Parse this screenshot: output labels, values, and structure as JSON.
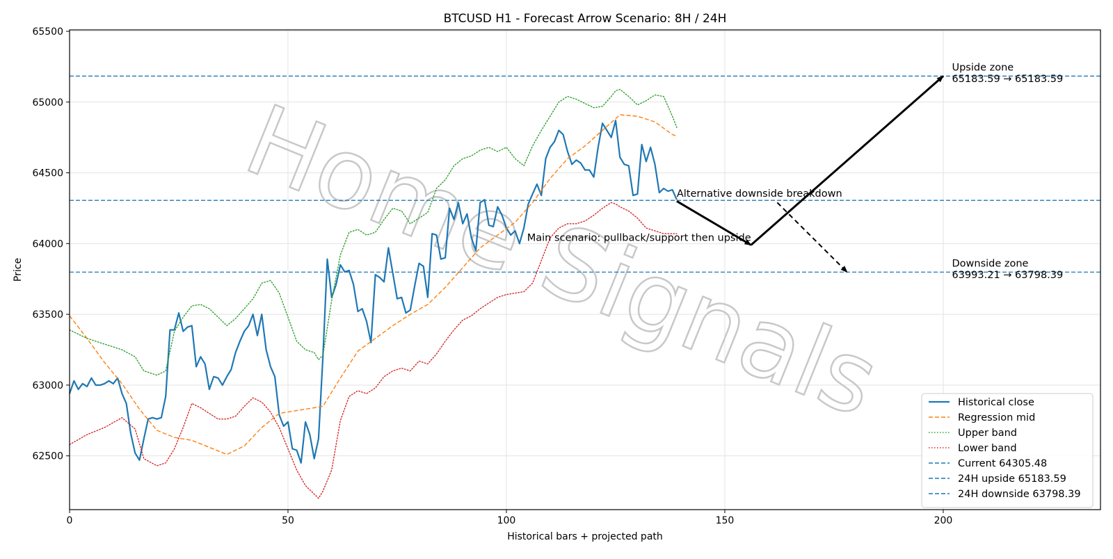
{
  "chart_data": {
    "type": "line",
    "title": "BTCUSD H1 - Forecast Arrow Scenario: 8H / 24H",
    "xlabel": "Historical bars + projected path",
    "ylabel": "Price",
    "xlim": [
      0,
      236
    ],
    "ylim": [
      62120,
      65510
    ],
    "x_ticks": [
      0,
      50,
      100,
      150,
      200
    ],
    "y_ticks": [
      62500,
      63000,
      63500,
      64000,
      64500,
      65000,
      65500
    ],
    "grid": true,
    "legend_position": "bottom-right",
    "watermark": "Home Signals",
    "colors": {
      "historical": "#1f77b4",
      "regression": "#ff7f0e",
      "upper": "#2ca02c",
      "lower": "#d62728",
      "hline": "#1f77b4",
      "arrow": "#000000"
    },
    "series": [
      {
        "name": "Historical close",
        "style": "solid",
        "x": [
          0,
          1,
          2,
          3,
          4,
          5,
          6,
          7,
          8,
          9,
          10,
          11,
          12,
          13,
          14,
          15,
          16,
          17,
          18,
          19,
          20,
          21,
          22,
          23,
          24,
          25,
          26,
          27,
          28,
          29,
          30,
          31,
          32,
          33,
          34,
          35,
          36,
          37,
          38,
          39,
          40,
          41,
          42,
          43,
          44,
          45,
          46,
          47,
          48,
          49,
          50,
          51,
          52,
          53,
          54,
          55,
          56,
          57,
          58,
          59,
          60,
          61,
          62,
          63,
          64,
          65,
          66,
          67,
          68,
          69,
          70,
          71,
          72,
          73,
          74,
          75,
          76,
          77,
          78,
          79,
          80,
          81,
          82,
          83,
          84,
          85,
          86,
          87,
          88,
          89,
          90,
          91,
          92,
          93,
          94,
          95,
          96,
          97,
          98,
          99,
          100,
          101,
          102,
          103,
          104,
          105,
          106,
          107,
          108,
          109,
          110,
          111,
          112,
          113,
          114,
          115,
          116,
          117,
          118,
          119,
          120,
          121,
          122,
          123,
          124,
          125,
          126,
          127,
          128,
          129,
          130,
          131,
          132,
          133,
          134,
          135,
          136,
          137,
          138,
          139
        ],
        "y": [
          62940,
          63030,
          62970,
          63010,
          62990,
          63050,
          63000,
          63000,
          63010,
          63030,
          63010,
          63050,
          62940,
          62870,
          62660,
          62520,
          62470,
          62620,
          62760,
          62770,
          62760,
          62770,
          62920,
          63390,
          63390,
          63510,
          63380,
          63410,
          63420,
          63130,
          63200,
          63150,
          62970,
          63060,
          63050,
          63000,
          63060,
          63110,
          63230,
          63310,
          63380,
          63420,
          63500,
          63350,
          63500,
          63250,
          63130,
          63060,
          62790,
          62710,
          62740,
          62550,
          62540,
          62450,
          62740,
          62650,
          62480,
          62620,
          63200,
          63890,
          63620,
          63710,
          63850,
          63800,
          63810,
          63710,
          63520,
          63540,
          63450,
          63300,
          63780,
          63760,
          63730,
          63970,
          63790,
          63610,
          63620,
          63510,
          63530,
          63700,
          63860,
          63840,
          63620,
          64070,
          64060,
          63890,
          63900,
          64250,
          64170,
          64290,
          64140,
          64210,
          64040,
          63950,
          64290,
          64310,
          64130,
          64120,
          64260,
          64200,
          64110,
          64060,
          64090,
          64000,
          64110,
          64280,
          64350,
          64420,
          64340,
          64600,
          64680,
          64720,
          64800,
          64770,
          64650,
          64560,
          64590,
          64570,
          64520,
          64520,
          64470,
          64680,
          64850,
          64800,
          64750,
          64870,
          64610,
          64560,
          64550,
          64340,
          64350,
          64700,
          64580,
          64680,
          64560,
          64360,
          64390,
          64370,
          64380,
          64310
        ]
      },
      {
        "name": "Regression mid",
        "style": "dashed",
        "x": [
          0,
          4,
          8,
          12,
          16,
          20,
          24,
          28,
          32,
          36,
          40,
          44,
          48,
          52,
          56,
          58,
          62,
          66,
          70,
          74,
          78,
          82,
          86,
          90,
          94,
          98,
          102,
          106,
          110,
          114,
          118,
          122,
          126,
          130,
          134,
          138,
          139
        ],
        "y": [
          63490,
          63330,
          63160,
          63010,
          62830,
          62680,
          62630,
          62610,
          62560,
          62510,
          62570,
          62700,
          62800,
          62820,
          62840,
          62850,
          63050,
          63240,
          63330,
          63420,
          63500,
          63570,
          63690,
          63830,
          63970,
          64060,
          64150,
          64290,
          64460,
          64600,
          64690,
          64800,
          64910,
          64900,
          64860,
          64770,
          64760
        ]
      },
      {
        "name": "Upper band",
        "style": "dotted",
        "x": [
          0,
          4,
          8,
          12,
          15,
          17,
          20,
          22,
          24,
          26,
          28,
          30,
          32,
          34,
          36,
          38,
          40,
          42,
          44,
          46,
          48,
          50,
          52,
          54,
          56,
          57,
          58,
          60,
          62,
          64,
          66,
          68,
          70,
          72,
          74,
          76,
          78,
          80,
          82,
          84,
          86,
          88,
          90,
          92,
          94,
          96,
          98,
          100,
          102,
          104,
          106,
          108,
          110,
          112,
          114,
          116,
          118,
          120,
          122,
          124,
          125,
          126,
          128,
          130,
          132,
          134,
          136,
          138,
          139
        ],
        "y": [
          63390,
          63330,
          63290,
          63250,
          63200,
          63100,
          63070,
          63100,
          63380,
          63480,
          63560,
          63570,
          63540,
          63480,
          63420,
          63470,
          63540,
          63610,
          63720,
          63740,
          63650,
          63480,
          63310,
          63250,
          63230,
          63180,
          63210,
          63600,
          63920,
          64080,
          64100,
          64060,
          64080,
          64170,
          64250,
          64230,
          64140,
          64180,
          64220,
          64390,
          64450,
          64550,
          64600,
          64620,
          64660,
          64680,
          64650,
          64680,
          64600,
          64550,
          64690,
          64800,
          64900,
          65000,
          65040,
          65020,
          64990,
          64960,
          64970,
          65040,
          65080,
          65090,
          65040,
          64980,
          65010,
          65050,
          65040,
          64900,
          64820
        ]
      },
      {
        "name": "Lower band",
        "style": "dotted",
        "x": [
          0,
          4,
          8,
          12,
          15,
          17,
          20,
          22,
          24,
          26,
          28,
          30,
          32,
          34,
          36,
          38,
          40,
          42,
          44,
          46,
          48,
          50,
          52,
          54,
          56,
          57,
          58,
          60,
          62,
          64,
          66,
          68,
          70,
          72,
          74,
          76,
          78,
          80,
          82,
          84,
          86,
          88,
          90,
          92,
          94,
          96,
          98,
          100,
          102,
          104,
          106,
          108,
          110,
          112,
          114,
          116,
          118,
          120,
          122,
          124,
          125,
          126,
          128,
          130,
          132,
          134,
          136,
          138,
          139
        ],
        "y": [
          62580,
          62650,
          62700,
          62770,
          62690,
          62480,
          62430,
          62450,
          62550,
          62700,
          62870,
          62840,
          62800,
          62760,
          62760,
          62780,
          62850,
          62910,
          62880,
          62810,
          62700,
          62550,
          62400,
          62290,
          62230,
          62200,
          62250,
          62400,
          62750,
          62920,
          62960,
          62940,
          62980,
          63060,
          63100,
          63120,
          63100,
          63170,
          63150,
          63220,
          63310,
          63390,
          63460,
          63490,
          63540,
          63580,
          63620,
          63640,
          63650,
          63660,
          63720,
          63880,
          64040,
          64110,
          64140,
          64140,
          64160,
          64200,
          64250,
          64290,
          64280,
          64260,
          64230,
          64180,
          64110,
          64090,
          64070,
          64070,
          64070
        ]
      }
    ],
    "hlines": [
      {
        "name": "Current 64305.48",
        "y": 64305.48
      },
      {
        "name": "24H upside 65183.59",
        "y": 65183.59
      },
      {
        "name": "24H downside 63798.39",
        "y": 63798.39
      }
    ],
    "arrows": [
      {
        "kind": "main",
        "style": "solid",
        "from": [
          139,
          64300
        ],
        "to": [
          156,
          63990
        ]
      },
      {
        "kind": "main",
        "style": "solid",
        "from": [
          156,
          63990
        ],
        "to": [
          200,
          65183.59
        ]
      },
      {
        "kind": "alternative",
        "style": "dashed",
        "from": [
          162,
          64290
        ],
        "to": [
          178,
          63798.39
        ]
      }
    ],
    "annotations": [
      {
        "text": "Alternative downside breakdown",
        "x": 139,
        "y": 64330,
        "anchor": "start"
      },
      {
        "text": "Main scenario: pullback/support then upside",
        "x": 156,
        "y": 64020,
        "anchor": "end"
      },
      {
        "text": "Upside zone",
        "x": 202,
        "y": 65222,
        "anchor": "start"
      },
      {
        "text": "65183.59 → 65183.59",
        "x": 202,
        "y": 65142,
        "anchor": "start"
      },
      {
        "text": "Downside zone",
        "x": 202,
        "y": 63837,
        "anchor": "start"
      },
      {
        "text": "63993.21 → 63798.39",
        "x": 202,
        "y": 63757,
        "anchor": "start"
      }
    ]
  }
}
